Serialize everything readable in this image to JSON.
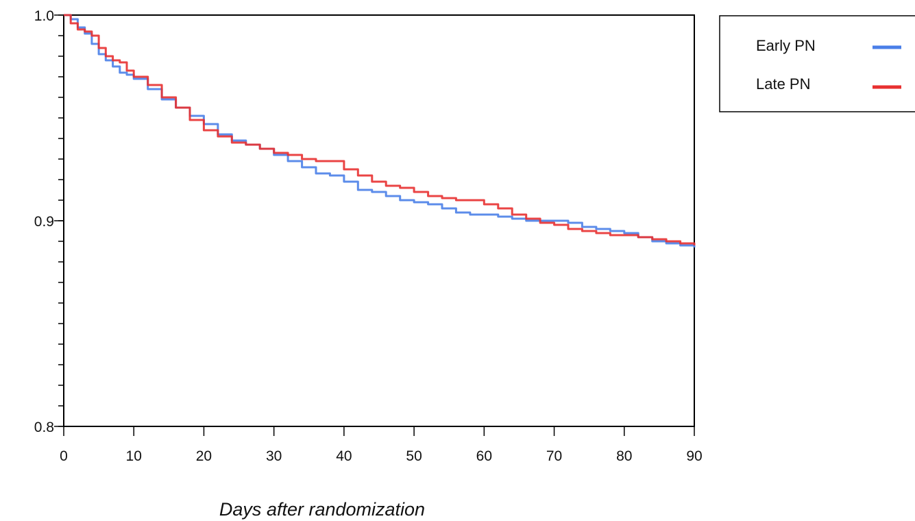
{
  "chart_data": {
    "type": "line",
    "xlabel": "Days after randomization",
    "ylabel": "",
    "xlim": [
      0,
      90
    ],
    "ylim": [
      0.8,
      1.0
    ],
    "x_ticks": [
      0,
      10,
      20,
      30,
      40,
      50,
      60,
      70,
      80,
      90
    ],
    "x_tick_labels": [
      "0",
      "10",
      "20",
      "30",
      "40",
      "50",
      "60",
      "70",
      "80",
      "90"
    ],
    "y_ticks": [
      0.8,
      0.9,
      1.0
    ],
    "y_tick_labels": [
      "0.8",
      "0.9",
      "1.0"
    ],
    "y_minor_step": 0.01,
    "grid": false,
    "legend_position": "outside-top-right",
    "series": [
      {
        "name": "Early PN",
        "color": "#4a7fe8",
        "x": [
          0,
          1,
          2,
          3,
          4,
          5,
          6,
          7,
          8,
          9,
          10,
          12,
          14,
          16,
          18,
          20,
          22,
          24,
          26,
          28,
          30,
          32,
          34,
          36,
          38,
          40,
          42,
          44,
          46,
          48,
          50,
          52,
          54,
          56,
          58,
          60,
          62,
          64,
          66,
          68,
          70,
          72,
          74,
          76,
          78,
          80,
          82,
          84,
          86,
          88,
          90
        ],
        "y": [
          1.0,
          0.998,
          0.994,
          0.991,
          0.986,
          0.981,
          0.978,
          0.975,
          0.972,
          0.971,
          0.969,
          0.964,
          0.959,
          0.955,
          0.951,
          0.947,
          0.942,
          0.939,
          0.937,
          0.935,
          0.932,
          0.929,
          0.926,
          0.923,
          0.922,
          0.919,
          0.915,
          0.914,
          0.912,
          0.91,
          0.909,
          0.908,
          0.906,
          0.904,
          0.903,
          0.903,
          0.902,
          0.901,
          0.9,
          0.9,
          0.9,
          0.899,
          0.897,
          0.896,
          0.895,
          0.894,
          0.892,
          0.89,
          0.889,
          0.888,
          0.887
        ]
      },
      {
        "name": "Late PN",
        "color": "#e83030",
        "x": [
          0,
          1,
          2,
          3,
          4,
          5,
          6,
          7,
          8,
          9,
          10,
          12,
          14,
          16,
          18,
          20,
          22,
          24,
          26,
          28,
          30,
          32,
          34,
          36,
          38,
          40,
          42,
          44,
          46,
          48,
          50,
          52,
          54,
          56,
          58,
          60,
          62,
          64,
          66,
          68,
          70,
          72,
          74,
          76,
          78,
          80,
          82,
          84,
          86,
          88,
          90
        ],
        "y": [
          1.0,
          0.996,
          0.993,
          0.992,
          0.99,
          0.984,
          0.98,
          0.978,
          0.977,
          0.973,
          0.97,
          0.966,
          0.96,
          0.955,
          0.949,
          0.944,
          0.941,
          0.938,
          0.937,
          0.935,
          0.933,
          0.932,
          0.93,
          0.929,
          0.929,
          0.925,
          0.922,
          0.919,
          0.917,
          0.916,
          0.914,
          0.912,
          0.911,
          0.91,
          0.91,
          0.908,
          0.906,
          0.903,
          0.901,
          0.899,
          0.898,
          0.896,
          0.895,
          0.894,
          0.893,
          0.893,
          0.892,
          0.891,
          0.89,
          0.889,
          0.888
        ]
      }
    ]
  }
}
